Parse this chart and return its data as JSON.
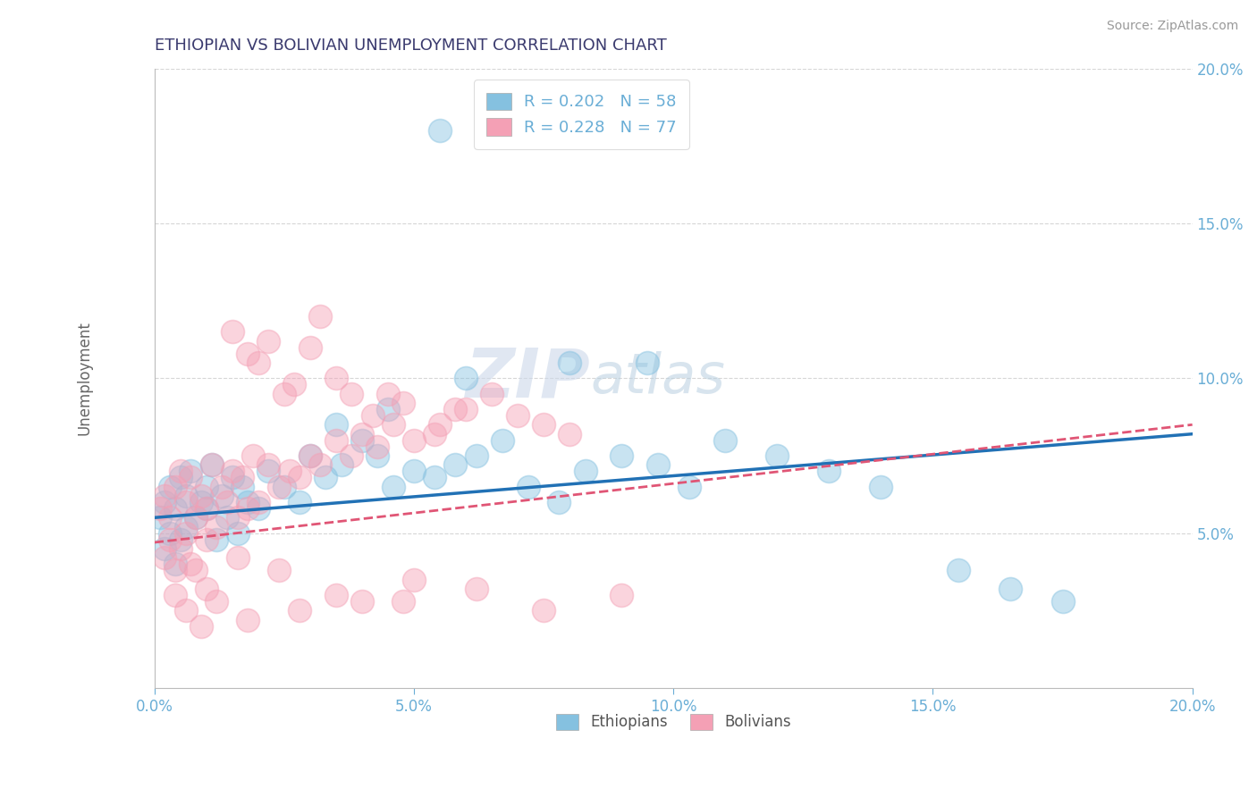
{
  "title": "ETHIOPIAN VS BOLIVIAN UNEMPLOYMENT CORRELATION CHART",
  "source": "Source: ZipAtlas.com",
  "ylabel": "Unemployment",
  "xlim": [
    0.0,
    0.2
  ],
  "ylim": [
    0.0,
    0.2
  ],
  "xticks": [
    0.0,
    0.05,
    0.1,
    0.15,
    0.2
  ],
  "xtick_labels": [
    "0.0%",
    "5.0%",
    "10.0%",
    "15.0%",
    "20.0%"
  ],
  "yticks": [
    0.05,
    0.1,
    0.15,
    0.2
  ],
  "ytick_labels": [
    "5.0%",
    "10.0%",
    "15.0%",
    "20.0%"
  ],
  "ethiopians_color": "#85c1e0",
  "bolivians_color": "#f4a0b5",
  "trend_ethiopians_color": "#2171b5",
  "trend_bolivians_color": "#e05575",
  "R_ethiopians": 0.202,
  "N_ethiopians": 58,
  "R_bolivians": 0.228,
  "N_bolivians": 77,
  "watermark_zip": "ZIP",
  "watermark_atlas": "atlas",
  "title_color": "#3a3a6e",
  "axis_color": "#6aaed6",
  "trend_eth_x0": 0.0,
  "trend_eth_y0": 0.055,
  "trend_eth_x1": 0.2,
  "trend_eth_y1": 0.082,
  "trend_bol_x0": 0.0,
  "trend_bol_y0": 0.047,
  "trend_bol_x1": 0.2,
  "trend_bol_y1": 0.085,
  "ethiopians_x": [
    0.001,
    0.002,
    0.002,
    0.003,
    0.003,
    0.004,
    0.004,
    0.005,
    0.005,
    0.006,
    0.006,
    0.007,
    0.008,
    0.009,
    0.01,
    0.01,
    0.011,
    0.012,
    0.013,
    0.014,
    0.015,
    0.016,
    0.017,
    0.018,
    0.02,
    0.022,
    0.025,
    0.028,
    0.03,
    0.033,
    0.036,
    0.04,
    0.043,
    0.046,
    0.05,
    0.054,
    0.058,
    0.062,
    0.067,
    0.072,
    0.078,
    0.083,
    0.09,
    0.097,
    0.103,
    0.11,
    0.12,
    0.13,
    0.14,
    0.155,
    0.165,
    0.175,
    0.06,
    0.045,
    0.035,
    0.055,
    0.08,
    0.095
  ],
  "ethiopians_y": [
    0.055,
    0.06,
    0.045,
    0.065,
    0.05,
    0.058,
    0.04,
    0.068,
    0.048,
    0.062,
    0.052,
    0.07,
    0.055,
    0.06,
    0.058,
    0.065,
    0.072,
    0.048,
    0.062,
    0.055,
    0.068,
    0.05,
    0.065,
    0.06,
    0.058,
    0.07,
    0.065,
    0.06,
    0.075,
    0.068,
    0.072,
    0.08,
    0.075,
    0.065,
    0.07,
    0.068,
    0.072,
    0.075,
    0.08,
    0.065,
    0.06,
    0.07,
    0.075,
    0.072,
    0.065,
    0.08,
    0.075,
    0.07,
    0.065,
    0.038,
    0.032,
    0.028,
    0.1,
    0.09,
    0.085,
    0.18,
    0.105,
    0.105
  ],
  "bolivians_x": [
    0.001,
    0.002,
    0.002,
    0.003,
    0.003,
    0.004,
    0.004,
    0.005,
    0.005,
    0.006,
    0.006,
    0.007,
    0.007,
    0.008,
    0.009,
    0.01,
    0.01,
    0.011,
    0.012,
    0.013,
    0.014,
    0.015,
    0.016,
    0.017,
    0.018,
    0.019,
    0.02,
    0.022,
    0.024,
    0.026,
    0.028,
    0.03,
    0.032,
    0.035,
    0.038,
    0.04,
    0.043,
    0.046,
    0.05,
    0.054,
    0.015,
    0.02,
    0.025,
    0.03,
    0.035,
    0.018,
    0.022,
    0.027,
    0.032,
    0.038,
    0.042,
    0.048,
    0.055,
    0.06,
    0.065,
    0.07,
    0.075,
    0.08,
    0.058,
    0.045,
    0.01,
    0.012,
    0.008,
    0.006,
    0.004,
    0.016,
    0.024,
    0.035,
    0.048,
    0.062,
    0.075,
    0.09,
    0.05,
    0.04,
    0.028,
    0.018,
    0.009
  ],
  "bolivians_y": [
    0.058,
    0.062,
    0.042,
    0.055,
    0.048,
    0.065,
    0.038,
    0.07,
    0.045,
    0.06,
    0.05,
    0.068,
    0.04,
    0.055,
    0.062,
    0.058,
    0.048,
    0.072,
    0.052,
    0.065,
    0.06,
    0.07,
    0.055,
    0.068,
    0.058,
    0.075,
    0.06,
    0.072,
    0.065,
    0.07,
    0.068,
    0.075,
    0.072,
    0.08,
    0.075,
    0.082,
    0.078,
    0.085,
    0.08,
    0.082,
    0.115,
    0.105,
    0.095,
    0.11,
    0.1,
    0.108,
    0.112,
    0.098,
    0.12,
    0.095,
    0.088,
    0.092,
    0.085,
    0.09,
    0.095,
    0.088,
    0.085,
    0.082,
    0.09,
    0.095,
    0.032,
    0.028,
    0.038,
    0.025,
    0.03,
    0.042,
    0.038,
    0.03,
    0.028,
    0.032,
    0.025,
    0.03,
    0.035,
    0.028,
    0.025,
    0.022,
    0.02
  ]
}
